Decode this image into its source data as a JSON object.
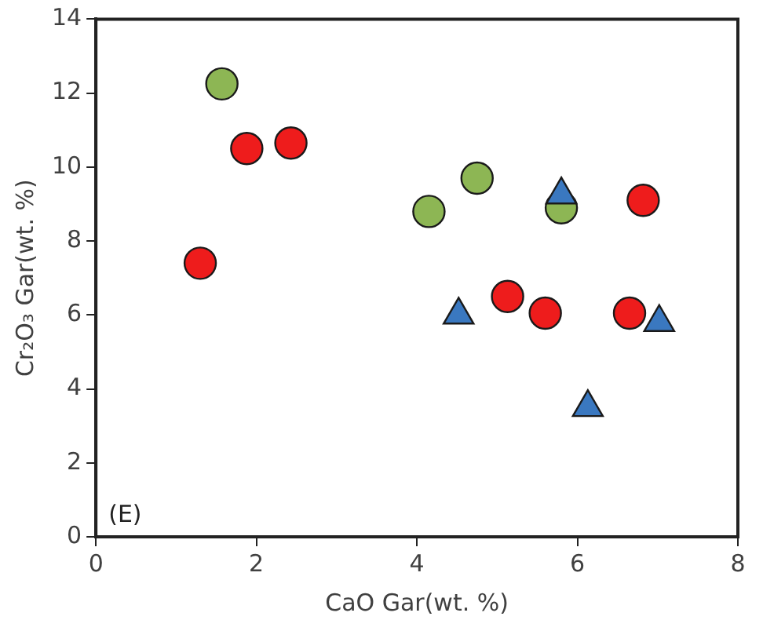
{
  "chart_data": {
    "type": "scatter",
    "xlabel": "CaO Gar(wt. %)",
    "ylabel": "Cr₂O₃ Gar(wt. %)",
    "annotations": [
      "(E)"
    ],
    "xlim": [
      0,
      8
    ],
    "xticks": [
      0,
      2,
      4,
      6,
      8
    ],
    "ylim": [
      0,
      14
    ],
    "yticks": [
      0,
      2,
      4,
      6,
      8,
      10,
      12,
      14
    ],
    "grid": false,
    "legend": false,
    "series": [
      {
        "color": "#8db654",
        "marker": "circle",
        "x": [
          1.57,
          4.15,
          4.75,
          5.8
        ],
        "values": [
          12.25,
          8.8,
          9.7,
          8.9
        ]
      },
      {
        "color": "#ee1c1c",
        "marker": "circle",
        "x": [
          1.3,
          1.88,
          2.43,
          5.13,
          5.6,
          6.65,
          6.82
        ],
        "values": [
          7.4,
          10.5,
          10.65,
          6.5,
          6.05,
          6.05,
          9.1
        ]
      },
      {
        "color": "#3a78c0",
        "marker": "triangle",
        "x": [
          4.52,
          5.8,
          6.13,
          7.02
        ],
        "values": [
          6.0,
          9.25,
          3.5,
          5.8
        ]
      }
    ]
  }
}
